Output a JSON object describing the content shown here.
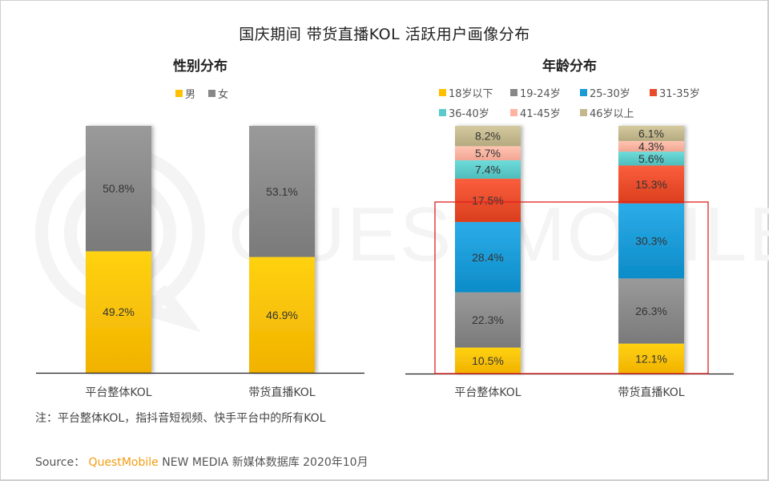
{
  "title": "国庆期间 带货直播KOL 活跃用户画像分布",
  "watermark_text": "QUESTMOBILE",
  "footnote": "注：平台整体KOL，指抖音短视频、快手平台中的所有KOL",
  "source": {
    "label": "Source：",
    "brand": "QuestMobile",
    "rest": "NEW MEDIA 新媒体数据库 2020年10月"
  },
  "highlight": {
    "description": "red box highlighting 18-30岁 segments of both age bars",
    "color": "#e02020"
  },
  "chart_data": [
    {
      "type": "bar",
      "stacked": true,
      "percent": true,
      "title": "性别分布",
      "categories": [
        "平台整体KOL",
        "带货直播KOL"
      ],
      "legend_position": "top",
      "series": [
        {
          "name": "男",
          "color": "#ffc000",
          "values": [
            49.2,
            46.9
          ],
          "labels": [
            "49.2%",
            "46.9%"
          ]
        },
        {
          "name": "女",
          "color": "#888888",
          "values": [
            50.8,
            53.1
          ],
          "labels": [
            "50.8%",
            "53.1%"
          ]
        }
      ],
      "ylim": [
        0,
        100
      ],
      "grid": false
    },
    {
      "type": "bar",
      "stacked": true,
      "percent": true,
      "title": "年龄分布",
      "categories": [
        "平台整体KOL",
        "带货直播KOL"
      ],
      "legend_position": "top",
      "series": [
        {
          "name": "18岁以下",
          "color": "#ffc000",
          "values": [
            10.5,
            12.1
          ],
          "labels": [
            "10.5%",
            "12.1%"
          ]
        },
        {
          "name": "19-24岁",
          "color": "#888888",
          "values": [
            22.3,
            26.3
          ],
          "labels": [
            "22.3%",
            "26.3%"
          ]
        },
        {
          "name": "25-30岁",
          "color": "#1a9ad6",
          "values": [
            28.4,
            30.3
          ],
          "labels": [
            "28.4%",
            "30.3%"
          ]
        },
        {
          "name": "31-35岁",
          "color": "#e84c2b",
          "values": [
            17.5,
            15.3
          ],
          "labels": [
            "17.5%",
            "15.3%"
          ]
        },
        {
          "name": "36-40岁",
          "color": "#5ccac8",
          "values": [
            7.4,
            5.6
          ],
          "labels": [
            "7.4%",
            "5.6%"
          ]
        },
        {
          "name": "41-45岁",
          "color": "#ffb3a0",
          "values": [
            5.7,
            4.3
          ],
          "labels": [
            "5.7%",
            "4.3%"
          ]
        },
        {
          "name": "46岁以上",
          "color": "#c3b88d",
          "values": [
            8.2,
            6.1
          ],
          "labels": [
            "8.2%",
            "6.1%"
          ]
        }
      ],
      "ylim": [
        0,
        100
      ],
      "grid": false
    }
  ]
}
